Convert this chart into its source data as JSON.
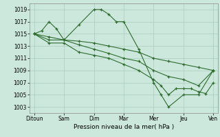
{
  "title": "",
  "xlabel": "Pression niveau de la mer( hPa )",
  "bg_color": "#cce8dd",
  "grid_color": "#aaccbb",
  "line_color": "#2d6b2d",
  "xlabels": [
    "Ditoun",
    "Sam",
    "Dim",
    "Mar",
    "Mer",
    "Jeu",
    "Ven"
  ],
  "xtick_positions": [
    0,
    1,
    2,
    3,
    4,
    5,
    6
  ],
  "ylim": [
    1002,
    1020
  ],
  "yticks": [
    1003,
    1005,
    1007,
    1009,
    1011,
    1013,
    1015,
    1017,
    1019
  ],
  "lines": [
    {
      "x": [
        0.0,
        0.25,
        0.5,
        0.75,
        1.0,
        1.5,
        2.0,
        2.25,
        2.5,
        2.75,
        3.0,
        3.5,
        4.0,
        4.25,
        4.5,
        5.0,
        5.5,
        6.0
      ],
      "y": [
        1015,
        1015.5,
        1017,
        1015.8,
        1014,
        1016.5,
        1019,
        1019,
        1018.2,
        1017,
        1017,
        1012.5,
        1007,
        1005,
        1003,
        1005,
        1005,
        1009
      ]
    },
    {
      "x": [
        0.0,
        0.5,
        1.0,
        1.5,
        2.0,
        2.5,
        3.0,
        3.5,
        4.0,
        4.5,
        5.0,
        5.5,
        6.0
      ],
      "y": [
        1015,
        1014.5,
        1014,
        1013.8,
        1013.5,
        1013,
        1012.5,
        1012,
        1011,
        1010.5,
        1010,
        1009.5,
        1009
      ]
    },
    {
      "x": [
        0.0,
        0.5,
        1.0,
        1.5,
        2.0,
        2.5,
        3.0,
        3.5,
        4.0,
        4.5,
        5.0,
        5.5,
        6.0
      ],
      "y": [
        1015,
        1014,
        1014,
        1013.2,
        1012.5,
        1011.8,
        1011,
        1010.5,
        1009,
        1008,
        1007.5,
        1006.5,
        1009
      ]
    },
    {
      "x": [
        0.0,
        0.5,
        1.0,
        1.5,
        2.0,
        2.5,
        3.0,
        3.5,
        4.0,
        4.25,
        4.5,
        4.75,
        5.0,
        5.25,
        5.5,
        5.75,
        6.0
      ],
      "y": [
        1015,
        1013.5,
        1013.5,
        1012,
        1011.5,
        1011,
        1010,
        1009,
        1007.5,
        1006.5,
        1005,
        1006,
        1006,
        1006,
        1005.5,
        1005.2,
        1007
      ]
    }
  ]
}
